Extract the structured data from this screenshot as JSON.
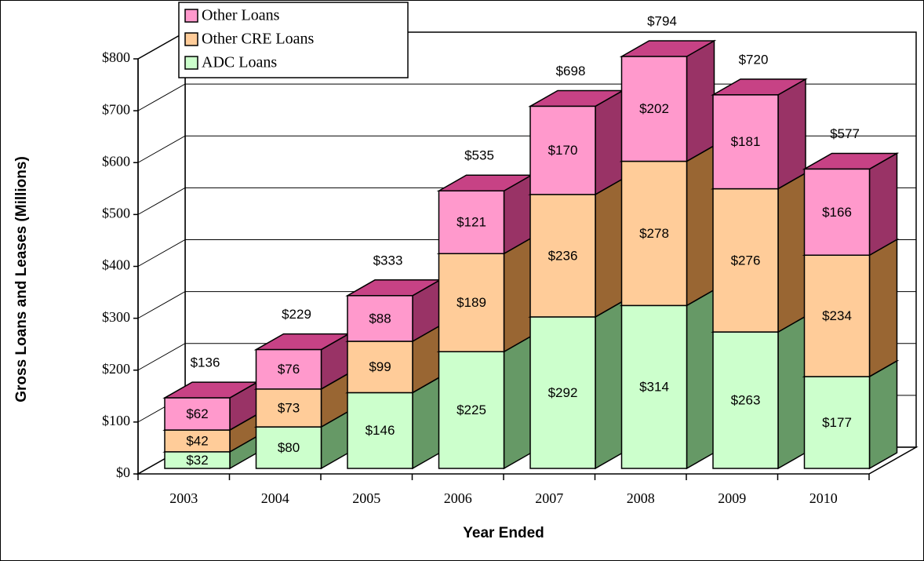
{
  "chart_data": {
    "type": "bar3d_stacked",
    "categories": [
      "2003",
      "2004",
      "2005",
      "2006",
      "2007",
      "2008",
      "2009",
      "2010"
    ],
    "series": [
      {
        "name": "ADC Loans",
        "color": "#ccffcc",
        "side_color": "#669966",
        "values": [
          32,
          80,
          146,
          225,
          292,
          314,
          263,
          177
        ],
        "value_labels": [
          "$32",
          "$80",
          "$146",
          "$225",
          "$292",
          "$314",
          "$263",
          "$177"
        ]
      },
      {
        "name": "Other CRE Loans",
        "color": "#ffcc99",
        "side_color": "#996633",
        "values": [
          42,
          73,
          99,
          189,
          236,
          278,
          276,
          234
        ],
        "value_labels": [
          "$42",
          "$73",
          "$99",
          "$189",
          "$236",
          "$278",
          "$276",
          "$234"
        ]
      },
      {
        "name": "Other Loans",
        "color": "#ff99cc",
        "side_color": "#993366",
        "values": [
          62,
          76,
          88,
          121,
          170,
          202,
          181,
          166
        ],
        "value_labels": [
          "$62",
          "$76",
          "$88",
          "$121",
          "$170",
          "$202",
          "$181",
          "$166"
        ]
      }
    ],
    "totals": [
      136,
      229,
      333,
      535,
      698,
      794,
      720,
      577
    ],
    "total_labels": [
      "$136",
      "$229",
      "$333",
      "$535",
      "$698",
      "$794",
      "$720",
      "$577"
    ],
    "ylim": [
      0,
      800
    ],
    "yticks": [
      {
        "value": 0,
        "label": "$0"
      },
      {
        "value": 100,
        "label": "$100"
      },
      {
        "value": 200,
        "label": "$200"
      },
      {
        "value": 300,
        "label": "$300"
      },
      {
        "value": 400,
        "label": "$400"
      },
      {
        "value": 500,
        "label": "$500"
      },
      {
        "value": 600,
        "label": "$600"
      },
      {
        "value": 700,
        "label": "$700"
      },
      {
        "value": 800,
        "label": "$800"
      }
    ],
    "y_label": "Gross Loans and Leases  (Millions)",
    "x_label": "Year Ended",
    "grid": true
  }
}
